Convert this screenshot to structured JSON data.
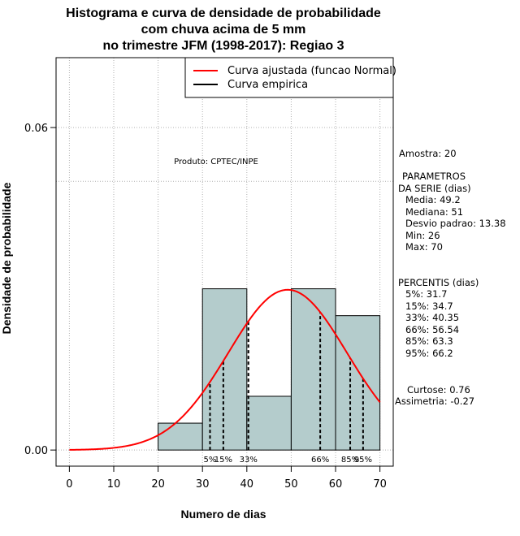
{
  "chart_data": {
    "type": "histogram",
    "title_lines": [
      "Histograma e curva de densidade de probabilidade",
      "com chuva acima de 5 mm",
      "no trimestre JFM (1998-2017): Regiao 3"
    ],
    "xlabel": "Numero de dias",
    "ylabel": "Densidade de probabilidade",
    "xlim": [
      -3,
      73
    ],
    "ylim": [
      -0.003,
      0.073
    ],
    "x_ticks": [
      0,
      10,
      20,
      30,
      40,
      50,
      60,
      70
    ],
    "x_tick_labels": [
      "0",
      "10",
      "20",
      "30",
      "40",
      "50",
      "60",
      "70"
    ],
    "y_ticks": [
      0.0,
      0.06
    ],
    "y_tick_labels": [
      "0.00",
      "0.06"
    ],
    "grid": true,
    "hline_y": 0.05,
    "bins": [
      {
        "x0": 20,
        "x1": 30,
        "density": 0.005
      },
      {
        "x0": 30,
        "x1": 40,
        "density": 0.03
      },
      {
        "x0": 40,
        "x1": 50,
        "density": 0.01
      },
      {
        "x0": 50,
        "x1": 60,
        "density": 0.03
      },
      {
        "x0": 60,
        "x1": 70,
        "density": 0.025
      }
    ],
    "bar_color": "#b4cccc",
    "curve": {
      "name": "Curva ajustada (funcao Normal)",
      "distribution": "normal",
      "mean": 49.2,
      "sd": 13.38,
      "color": "#ff0000",
      "x_range": [
        0,
        70
      ]
    },
    "empirical_legend": "Curva empirica",
    "legend_position": "top-right",
    "percentile_lines": [
      31.7,
      34.7,
      40.35,
      56.54,
      63.3,
      66.2
    ],
    "percentile_labels": [
      {
        "text": "5%",
        "x": 31.7
      },
      {
        "text": "15%",
        "x": 34.7
      },
      {
        "text": "33%",
        "x": 40.35
      },
      {
        "text": "66%",
        "x": 56.54
      },
      {
        "text": "85%",
        "x": 63.3
      },
      {
        "text": "95%",
        "x": 66.2
      }
    ],
    "product_label": "Produto: CPTEC/INPE"
  },
  "side_panel": {
    "amostra": "Amostra: 20",
    "params_title_1": "PARAMETROS",
    "params_title_2": "DA SERIE (dias)",
    "params": [
      "Media: 49.2",
      "Mediana: 51",
      "Desvio padrao: 13.38",
      "Min: 26",
      "Max: 70"
    ],
    "percentis_title": "PERCENTIS (dias)",
    "percentis": [
      "5%: 31.7",
      "15%: 34.7",
      "33%: 40.35",
      "66%: 56.54",
      "85%: 63.3",
      "95%: 66.2"
    ],
    "curtose": "Curtose: 0.76",
    "assimetria": "Assimetria: -0.27"
  }
}
